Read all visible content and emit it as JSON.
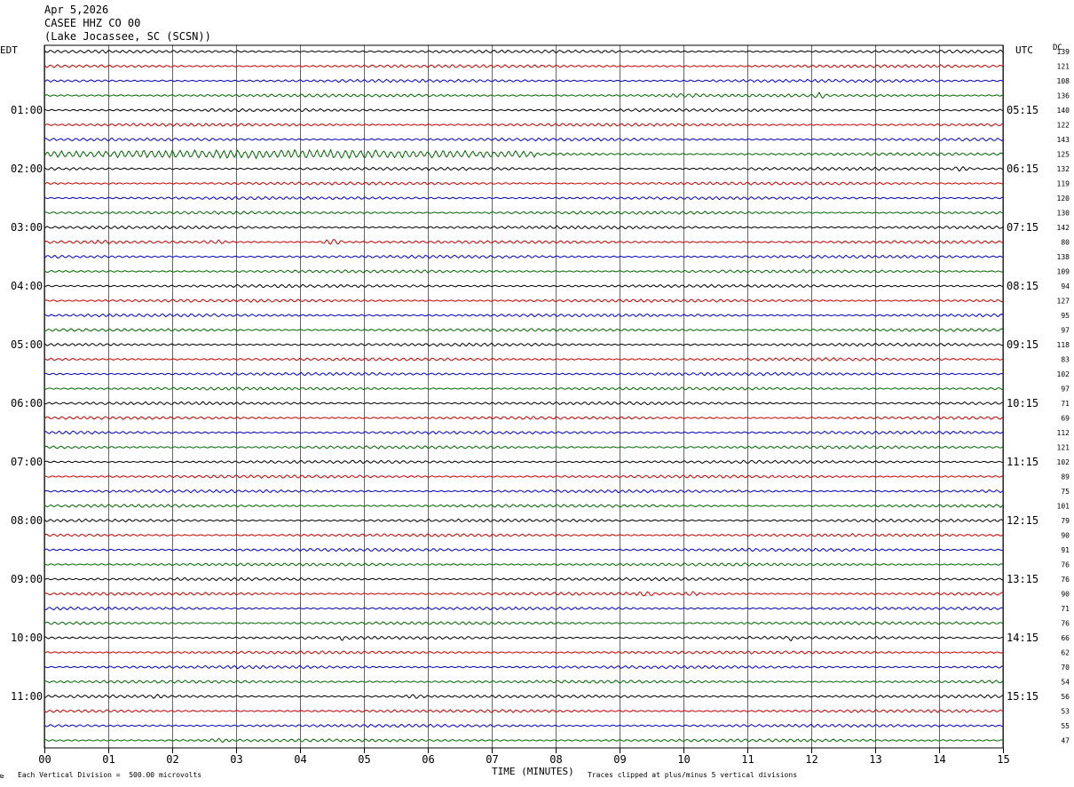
{
  "header": {
    "date": "Apr 5,2026",
    "station": "CASEE HHZ CO 00",
    "location": "(Lake Jocassee, SC (SCSN))"
  },
  "left_tz": "EDT",
  "right_tz": "UTC",
  "dc_label": "DC",
  "footer": {
    "scale": "Each Vertical Division =  500.00 microvolts",
    "axis_title": "TIME (MINUTES)",
    "clip_note": "Traces clipped at plus/minus 5 vertical divisions",
    "corner_mark": "⊵"
  },
  "chart_data": {
    "type": "line",
    "xlabel": "TIME (MINUTES)",
    "xlim": [
      0,
      15
    ],
    "x_ticks": [
      "00",
      "01",
      "02",
      "03",
      "04",
      "05",
      "06",
      "07",
      "08",
      "09",
      "10",
      "11",
      "12",
      "13",
      "14",
      "15"
    ],
    "rows_per_hour": 4,
    "row_minutes": 15,
    "trace_colors": [
      "#000000",
      "#cc0000",
      "#0000cc",
      "#006600"
    ],
    "left_hour_labels": [
      "01:00",
      "02:00",
      "03:00",
      "04:00",
      "05:00",
      "06:00",
      "07:00",
      "08:00",
      "09:00",
      "10:00",
      "11:00"
    ],
    "right_hour_labels": [
      "05:15",
      "06:15",
      "07:15",
      "08:15",
      "09:15",
      "10:15",
      "11:15",
      "12:15",
      "13:15",
      "14:15",
      "15:15"
    ],
    "dc_offsets": [
      139,
      121,
      108,
      136,
      140,
      122,
      143,
      125,
      132,
      119,
      120,
      130,
      142,
      80,
      138,
      109,
      94,
      127,
      95,
      97,
      118,
      83,
      102,
      97,
      71,
      69,
      112,
      121,
      102,
      89,
      75,
      101,
      79,
      90,
      91,
      76,
      76,
      90,
      71,
      76,
      66,
      62,
      70,
      54,
      56,
      53,
      55,
      47
    ],
    "events": [
      {
        "row": 7,
        "start_min": 0.0,
        "end_min": 7.7,
        "amplitude": 4.0
      },
      {
        "row": 3,
        "start_min": 9.6,
        "end_min": 10.5,
        "amplitude": 1.6
      },
      {
        "row": 3,
        "start_min": 12.0,
        "end_min": 12.3,
        "amplitude": 2.5
      },
      {
        "row": 13,
        "start_min": 4.3,
        "end_min": 4.7,
        "amplitude": 2.4
      },
      {
        "row": 13,
        "start_min": 0.6,
        "end_min": 1.2,
        "amplitude": 1.6
      },
      {
        "row": 13,
        "start_min": 2.4,
        "end_min": 2.9,
        "amplitude": 1.6
      },
      {
        "row": 8,
        "start_min": 14.2,
        "end_min": 14.5,
        "amplitude": 2.2
      },
      {
        "row": 37,
        "start_min": 9.2,
        "end_min": 9.6,
        "amplitude": 2.0
      },
      {
        "row": 37,
        "start_min": 9.9,
        "end_min": 10.3,
        "amplitude": 1.6
      },
      {
        "row": 40,
        "start_min": 4.6,
        "end_min": 4.7,
        "amplitude": 2.5
      },
      {
        "row": 40,
        "start_min": 11.65,
        "end_min": 11.72,
        "amplitude": 5.0
      },
      {
        "row": 44,
        "start_min": 1.6,
        "end_min": 2.0,
        "amplitude": 1.7
      },
      {
        "row": 44,
        "start_min": 5.6,
        "end_min": 6.0,
        "amplitude": 1.7
      },
      {
        "row": 47,
        "start_min": 2.5,
        "end_min": 3.0,
        "amplitude": 1.6
      }
    ],
    "grid": true
  }
}
